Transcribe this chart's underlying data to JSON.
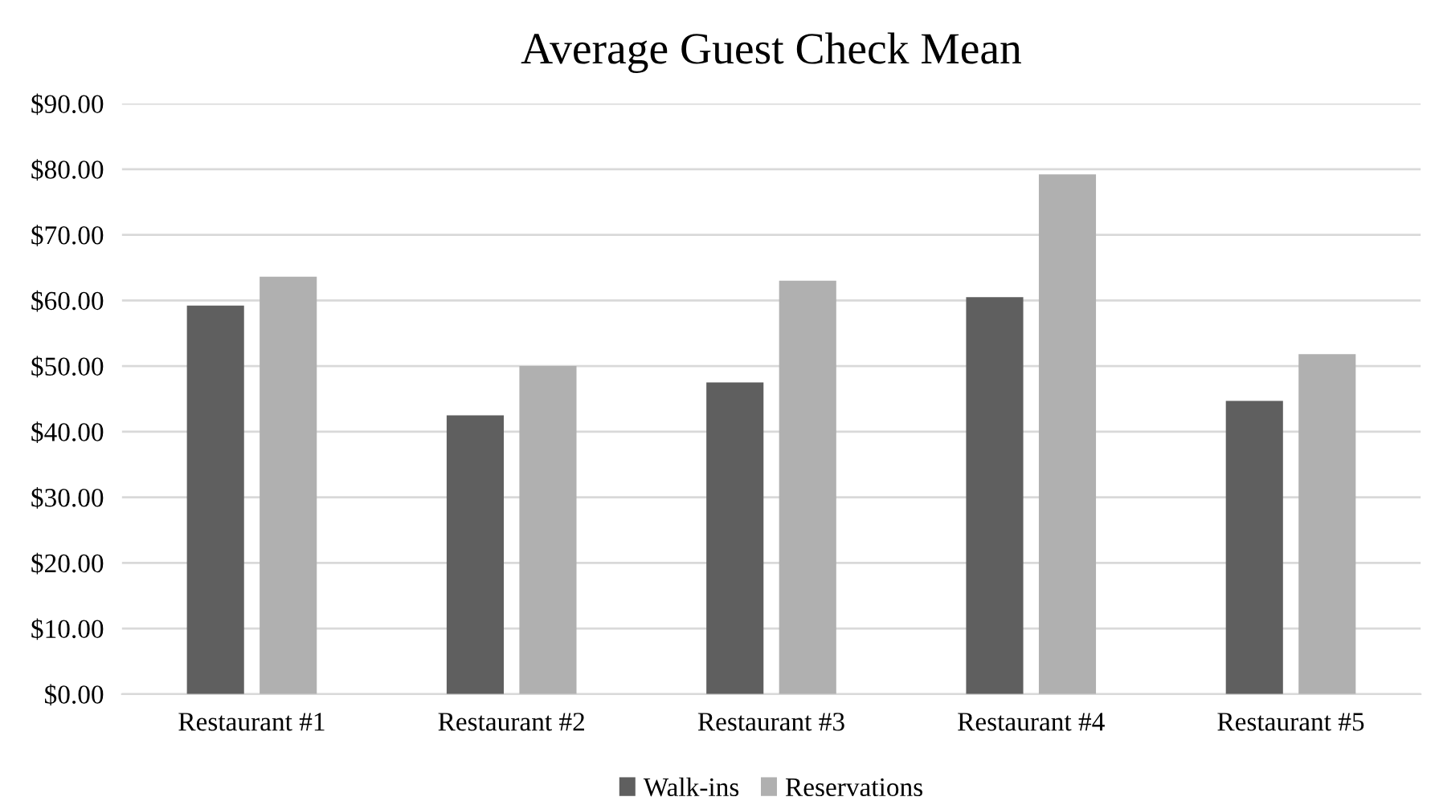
{
  "chart_data": {
    "type": "bar",
    "title": "Average Guest Check Mean",
    "categories": [
      "Restaurant #1",
      "Restaurant #2",
      "Restaurant #3",
      "Restaurant #4",
      "Restaurant #5"
    ],
    "series": [
      {
        "name": "Walk-ins",
        "color": "#5f5f5f",
        "values": [
          59.2,
          42.5,
          47.5,
          60.5,
          44.7
        ]
      },
      {
        "name": "Reservations",
        "color": "#b0b0b0",
        "values": [
          63.6,
          50.0,
          63.0,
          79.2,
          51.8
        ]
      }
    ],
    "ylim": [
      0,
      90
    ],
    "yticks": [
      {
        "value": 0,
        "label": "$0.00"
      },
      {
        "value": 10,
        "label": "$10.00"
      },
      {
        "value": 20,
        "label": "$20.00"
      },
      {
        "value": 30,
        "label": "$30.00"
      },
      {
        "value": 40,
        "label": "$40.00"
      },
      {
        "value": 50,
        "label": "$50.00"
      },
      {
        "value": 60,
        "label": "$60.00"
      },
      {
        "value": 70,
        "label": "$70.00"
      },
      {
        "value": 80,
        "label": "$80.00"
      },
      {
        "value": 90,
        "label": "$90.00"
      }
    ],
    "grid": "y",
    "legend": "bottom"
  }
}
